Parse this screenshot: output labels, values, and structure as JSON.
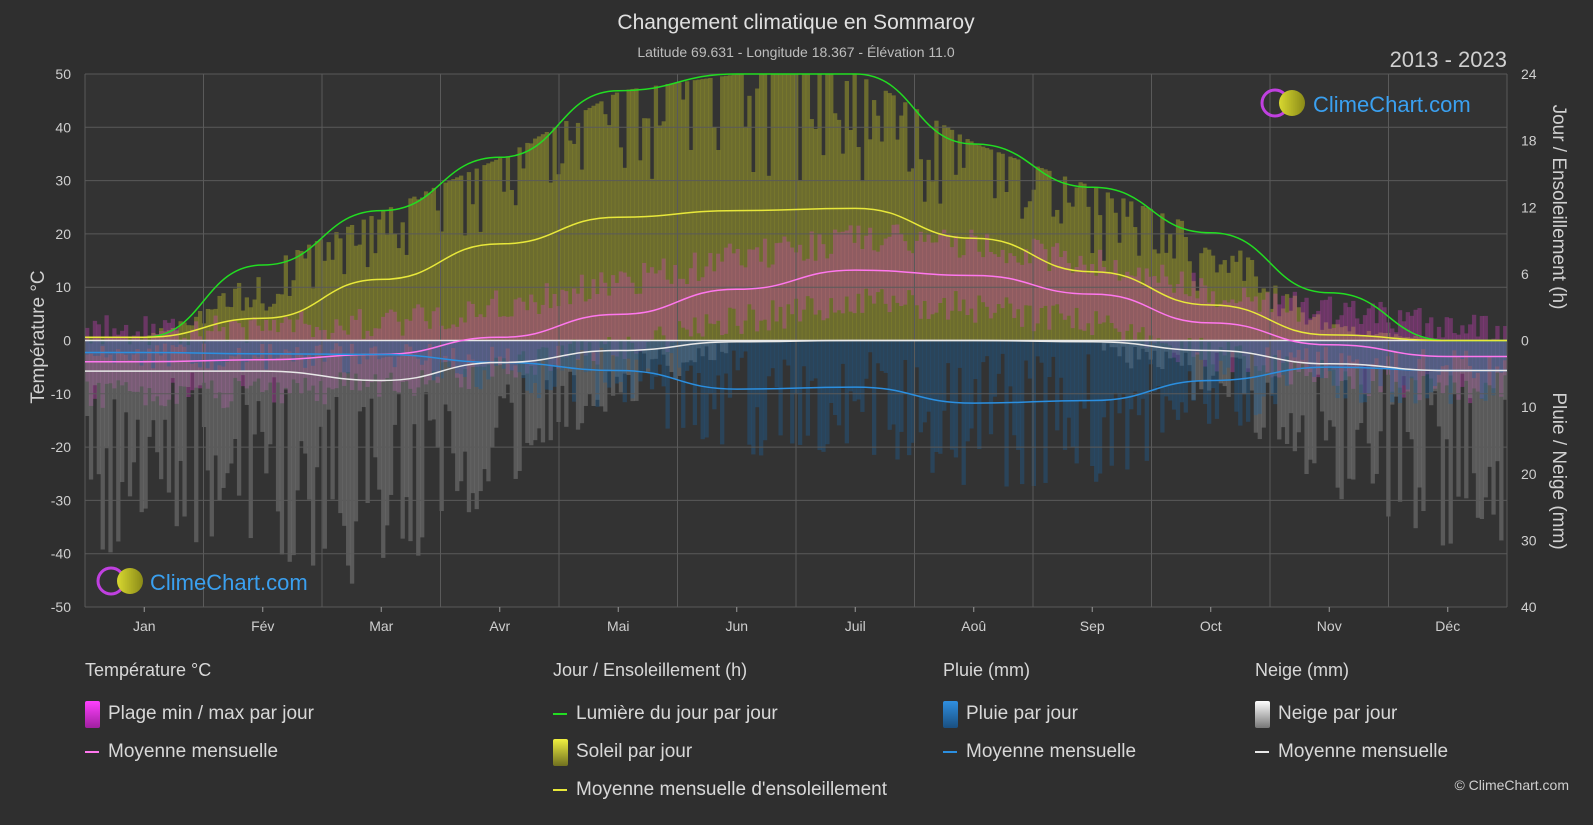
{
  "title": "Changement climatique en Sommaroy",
  "subtitle": "Latitude 69.631 - Longitude 18.367 - Élévation 11.0",
  "period": "2013 - 2023",
  "logo_text": "ClimeChart.com",
  "copyright": "© ClimeChart.com",
  "colors": {
    "background": "#2f2f2f",
    "daylight": "#22dd22",
    "sunshine_mean": "#e8e83a",
    "temp_mean": "#ff77ee",
    "rain_mean": "#2b8fe0",
    "snow_mean": "#e8e8e8",
    "temp_range": "#d040c0",
    "sunshine_bars": "#9a9a2a",
    "rain_bars": "#1e5f95",
    "snow_bars": "#8a8a8a"
  },
  "chart_data": {
    "type": "line",
    "x": [
      "Jan",
      "Fév",
      "Mar",
      "Avr",
      "Mai",
      "Jun",
      "Juil",
      "Aoû",
      "Sep",
      "Oct",
      "Nov",
      "Déc"
    ],
    "left_axis": {
      "label": "Température °C",
      "ylim": [
        -50,
        50
      ],
      "ticks": [
        50,
        40,
        30,
        20,
        10,
        0,
        -10,
        -20,
        -30,
        -40,
        -50
      ]
    },
    "right_axis_top": {
      "label": "Jour / Ensoleillement (h)",
      "ylim": [
        0,
        24
      ],
      "ticks": [
        24,
        18,
        12,
        6,
        0
      ]
    },
    "right_axis_bottom": {
      "label": "Pluie / Neige (mm)",
      "ylim": [
        0,
        40
      ],
      "ticks": [
        0,
        10,
        20,
        30,
        40
      ]
    },
    "grid": true,
    "series": [
      {
        "name": "Lumière du jour par jour",
        "axis": "hours",
        "values": [
          0.3,
          6.8,
          11.7,
          16.5,
          22.5,
          24,
          24,
          17.7,
          13.8,
          9.7,
          4.3,
          0.0
        ]
      },
      {
        "name": "Moyenne mensuelle d'ensoleillement",
        "axis": "hours",
        "values": [
          0.3,
          2.0,
          5.5,
          8.7,
          11.1,
          11.7,
          11.9,
          9.2,
          6.2,
          3.2,
          0.5,
          0.0
        ]
      },
      {
        "name": "Moyenne mensuelle",
        "key": "temp",
        "axis": "temp",
        "values": [
          -4.0,
          -3.6,
          -2.6,
          0.6,
          4.9,
          9.6,
          13.2,
          12.2,
          8.7,
          3.3,
          -0.8,
          -3.0
        ]
      },
      {
        "name": "Moyenne mensuelle",
        "key": "rain",
        "axis": "precip",
        "values": [
          1.8,
          2.0,
          2.1,
          3.3,
          4.5,
          7.3,
          7.0,
          9.4,
          9.0,
          6.0,
          4.0,
          4.5
        ]
      },
      {
        "name": "Moyenne mensuelle",
        "key": "snow",
        "axis": "precip",
        "values": [
          4.6,
          4.6,
          6.0,
          3.3,
          1.5,
          0.2,
          0.0,
          0.0,
          0.2,
          1.5,
          3.5,
          4.5
        ]
      }
    ]
  },
  "legend": {
    "temp": {
      "title": "Température °C",
      "items": [
        "Plage min / max par jour",
        "Moyenne mensuelle"
      ]
    },
    "sun": {
      "title": "Jour / Ensoleillement (h)",
      "items": [
        "Lumière du jour par jour",
        "Soleil par jour",
        "Moyenne mensuelle d'ensoleillement"
      ]
    },
    "rain": {
      "title": "Pluie (mm)",
      "items": [
        "Pluie par jour",
        "Moyenne mensuelle"
      ]
    },
    "snow": {
      "title": "Neige (mm)",
      "items": [
        "Neige par jour",
        "Moyenne mensuelle"
      ]
    }
  }
}
